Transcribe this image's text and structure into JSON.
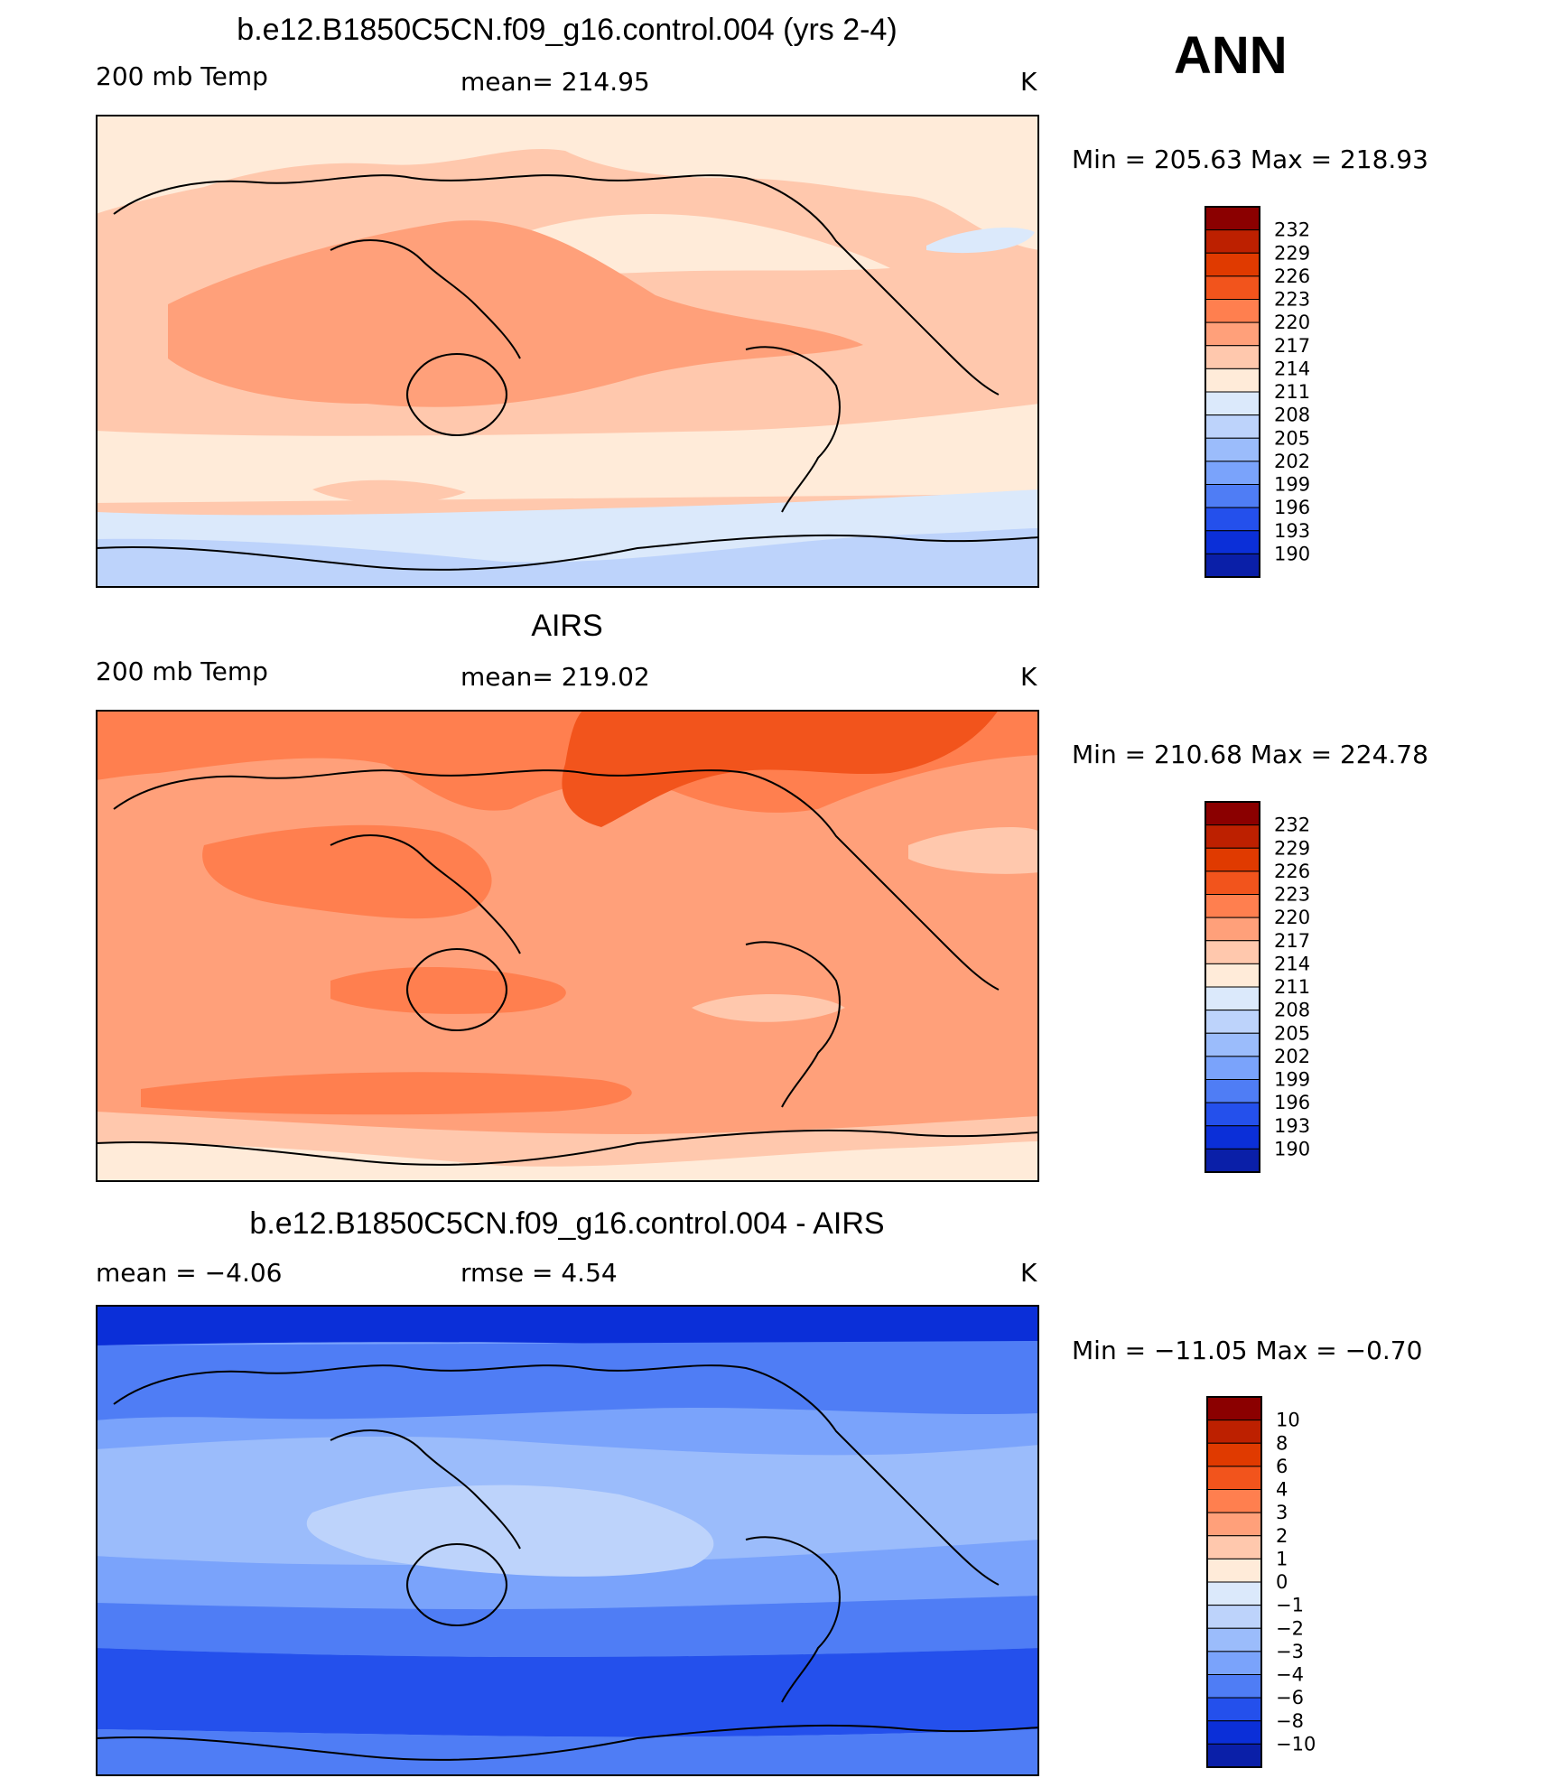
{
  "season": "ANN",
  "panels": [
    {
      "title": "b.e12.B1850C5CN.f09_g16.control.004 (yrs 2-4)",
      "left": "200 mb Temp",
      "center": "mean=  214.95",
      "right": "K",
      "minmax": "Min  =  205.63  Max  =  218.93",
      "levels": [
        "232",
        "229",
        "226",
        "223",
        "220",
        "217",
        "214",
        "211",
        "208",
        "205",
        "202",
        "199",
        "196",
        "193",
        "190"
      ],
      "colors": [
        "#8b0000",
        "#bd2000",
        "#e03a00",
        "#f2541c",
        "#ff7f4f",
        "#ffa07a",
        "#ffc8ad",
        "#ffebd9",
        "#dbe9fb",
        "#bdd3fb",
        "#9bbcfb",
        "#7aa3fb",
        "#4f7df5",
        "#2450ec",
        "#0b2fd8",
        "#0a1fa8"
      ],
      "background": "#ffc8ad",
      "map_regions": [
        {
          "name": "cool-north-atlantic",
          "color": "#ffebd9"
        },
        {
          "name": "cool-north-pacific",
          "color": "#ffebd9"
        },
        {
          "name": "warm-tropical-belt",
          "color": "#ffa07a"
        },
        {
          "name": "cool-southern-band",
          "color": "#ffebd9"
        },
        {
          "name": "pale-blue-antarctic-margin",
          "color": "#dbe9fb"
        },
        {
          "name": "blue-antarctic",
          "color": "#bdd3fb"
        }
      ]
    },
    {
      "title": "AIRS",
      "left": "200 mb Temp",
      "center": "mean=  219.02",
      "right": "K",
      "minmax": "Min  =  210.68  Max  =  224.78",
      "levels": [
        "232",
        "229",
        "226",
        "223",
        "220",
        "217",
        "214",
        "211",
        "208",
        "205",
        "202",
        "199",
        "196",
        "193",
        "190"
      ],
      "colors": [
        "#8b0000",
        "#bd2000",
        "#e03a00",
        "#f2541c",
        "#ff7f4f",
        "#ffa07a",
        "#ffc8ad",
        "#ffebd9",
        "#dbe9fb",
        "#bdd3fb",
        "#9bbcfb",
        "#7aa3fb",
        "#4f7df5",
        "#2450ec",
        "#0b2fd8",
        "#0a1fa8"
      ],
      "background": "#ffa07a",
      "map_regions": [
        {
          "name": "warm-arctic-band",
          "color": "#f2541c"
        },
        {
          "name": "warm-asia-band",
          "color": "#ff7f4f"
        },
        {
          "name": "warm-southern-band",
          "color": "#ff7f4f"
        },
        {
          "name": "cool-southern-ocean",
          "color": "#ffc8ad"
        },
        {
          "name": "cool-antarctic",
          "color": "#ffebd9"
        }
      ]
    },
    {
      "title": "b.e12.B1850C5CN.f09_g16.control.004 - AIRS",
      "left": "mean =    −4.06",
      "center": "rmse =     4.54",
      "right": "K",
      "minmax": "Min  =  −11.05  Max  =   −0.70",
      "levels": [
        "10",
        "8",
        "6",
        "4",
        "3",
        "2",
        "1",
        "0",
        "−1",
        "−2",
        "−3",
        "−4",
        "−6",
        "−8",
        "−10"
      ],
      "colors": [
        "#8b0000",
        "#bd2000",
        "#e03a00",
        "#f2541c",
        "#ff7f4f",
        "#ffa07a",
        "#ffc8ad",
        "#ffebd9",
        "#dbe9fb",
        "#bdd3fb",
        "#9bbcfb",
        "#7aa3fb",
        "#4f7df5",
        "#2450ec",
        "#0b2fd8",
        "#0a1fa8"
      ],
      "background": "#7aa3fb",
      "map_regions": [
        {
          "name": "dark-arctic",
          "color": "#0b2fd8"
        },
        {
          "name": "mid-north-band",
          "color": "#4f7df5"
        },
        {
          "name": "light-tropical-belt",
          "color": "#9bbcfb"
        },
        {
          "name": "lightest-tropical-core",
          "color": "#bdd3fb"
        },
        {
          "name": "mid-south-band",
          "color": "#4f7df5"
        },
        {
          "name": "dark-southern-ocean",
          "color": "#2450ec"
        }
      ]
    }
  ]
}
